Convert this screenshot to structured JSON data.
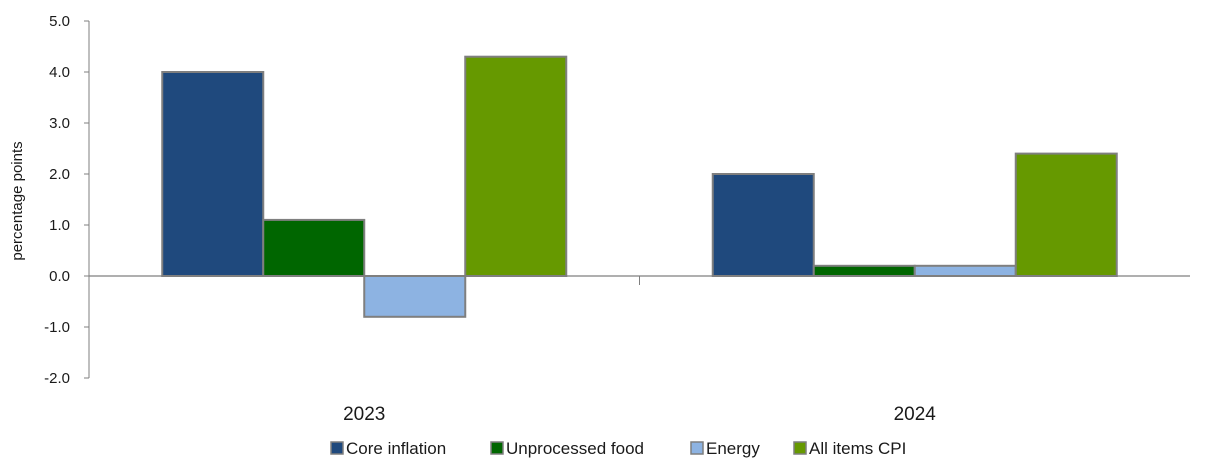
{
  "chart_data": {
    "type": "bar",
    "categories": [
      "2023",
      "2024"
    ],
    "series": [
      {
        "name": "Core inflation",
        "color": "#1f497d",
        "values": [
          4.0,
          2.0
        ]
      },
      {
        "name": "Unprocessed food",
        "color": "#006600",
        "values": [
          1.1,
          0.2
        ]
      },
      {
        "name": "Energy",
        "color": "#8db3e2",
        "values": [
          -0.8,
          0.2
        ]
      },
      {
        "name": "All items CPI",
        "color": "#669900",
        "values": [
          4.3,
          2.4
        ]
      }
    ],
    "ylabel": "percentage points",
    "ylim": [
      -2.0,
      5.0
    ],
    "yticks": [
      "5.0",
      "4.0",
      "3.0",
      "2.0",
      "1.0",
      "0.0",
      "-1.0",
      "-2.0"
    ],
    "grid": false,
    "legend_position": "bottom",
    "bar_outline_color": "#7f7f7f",
    "axis_color": "#7f7f7f"
  }
}
